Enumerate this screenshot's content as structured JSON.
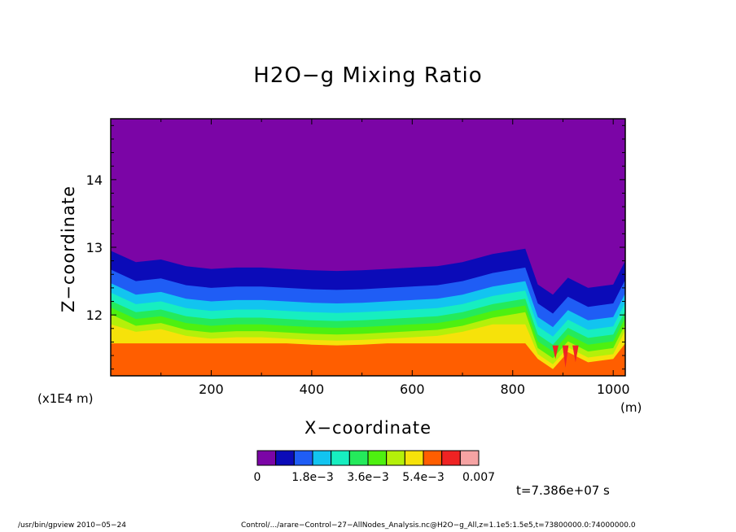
{
  "chart_data": {
    "type": "contour",
    "title": "H2O−g Mixing Ratio",
    "xlabel": "X−coordinate",
    "ylabel": "Z−coordinate",
    "x_unit": "(m)",
    "y_unit": "(x1E4 m)",
    "xlim": [
      0,
      1024
    ],
    "ylim": [
      11.1,
      14.9
    ],
    "x_ticks": [
      200,
      400,
      600,
      800,
      1000
    ],
    "y_ticks": [
      12,
      13,
      14
    ],
    "x_tick_labels": [
      "200",
      "400",
      "600",
      "800",
      "1000"
    ],
    "y_tick_labels": [
      "12",
      "13",
      "14"
    ],
    "levels": [
      0,
      0.0006,
      0.0012,
      0.0018,
      0.0024,
      0.003,
      0.0036,
      0.0042,
      0.0048,
      0.0054,
      0.006,
      0.0066,
      0.007
    ],
    "colorbar_tick_labels": [
      "0",
      "1.8e−3",
      "3.6e−3",
      "5.4e−3",
      "0.007"
    ],
    "colors": [
      "#7b05a6",
      "#0b0bb8",
      "#1f5df5",
      "#12c4f0",
      "#17eec0",
      "#24ea5b",
      "#4ef010",
      "#b4f00a",
      "#f6e20a",
      "#ff5e00",
      "#ef2323",
      "#f6a3a3"
    ],
    "contour_top_z": [
      12.95,
      12.78,
      12.82,
      12.72,
      12.68,
      12.7,
      12.7,
      12.68,
      12.66,
      12.65,
      12.66,
      12.68,
      12.7,
      12.72,
      12.78,
      12.9,
      12.98,
      12.45,
      12.3,
      12.55,
      12.4,
      12.45,
      12.8
    ],
    "contour_x": [
      0,
      50,
      100,
      150,
      200,
      250,
      300,
      350,
      400,
      450,
      500,
      550,
      600,
      650,
      700,
      760,
      825,
      850,
      880,
      910,
      950,
      1000,
      1024
    ]
  },
  "annotation": {
    "time": "t=7.386e+07 s",
    "footer_left": "/usr/bin/gpview   2010−05−24",
    "footer_right": "Control/.../arare−Control−27−AllNodes_Analysis.nc@H2O−g_All,z=1.1e5:1.5e5,t=73800000.0:74000000.0"
  }
}
